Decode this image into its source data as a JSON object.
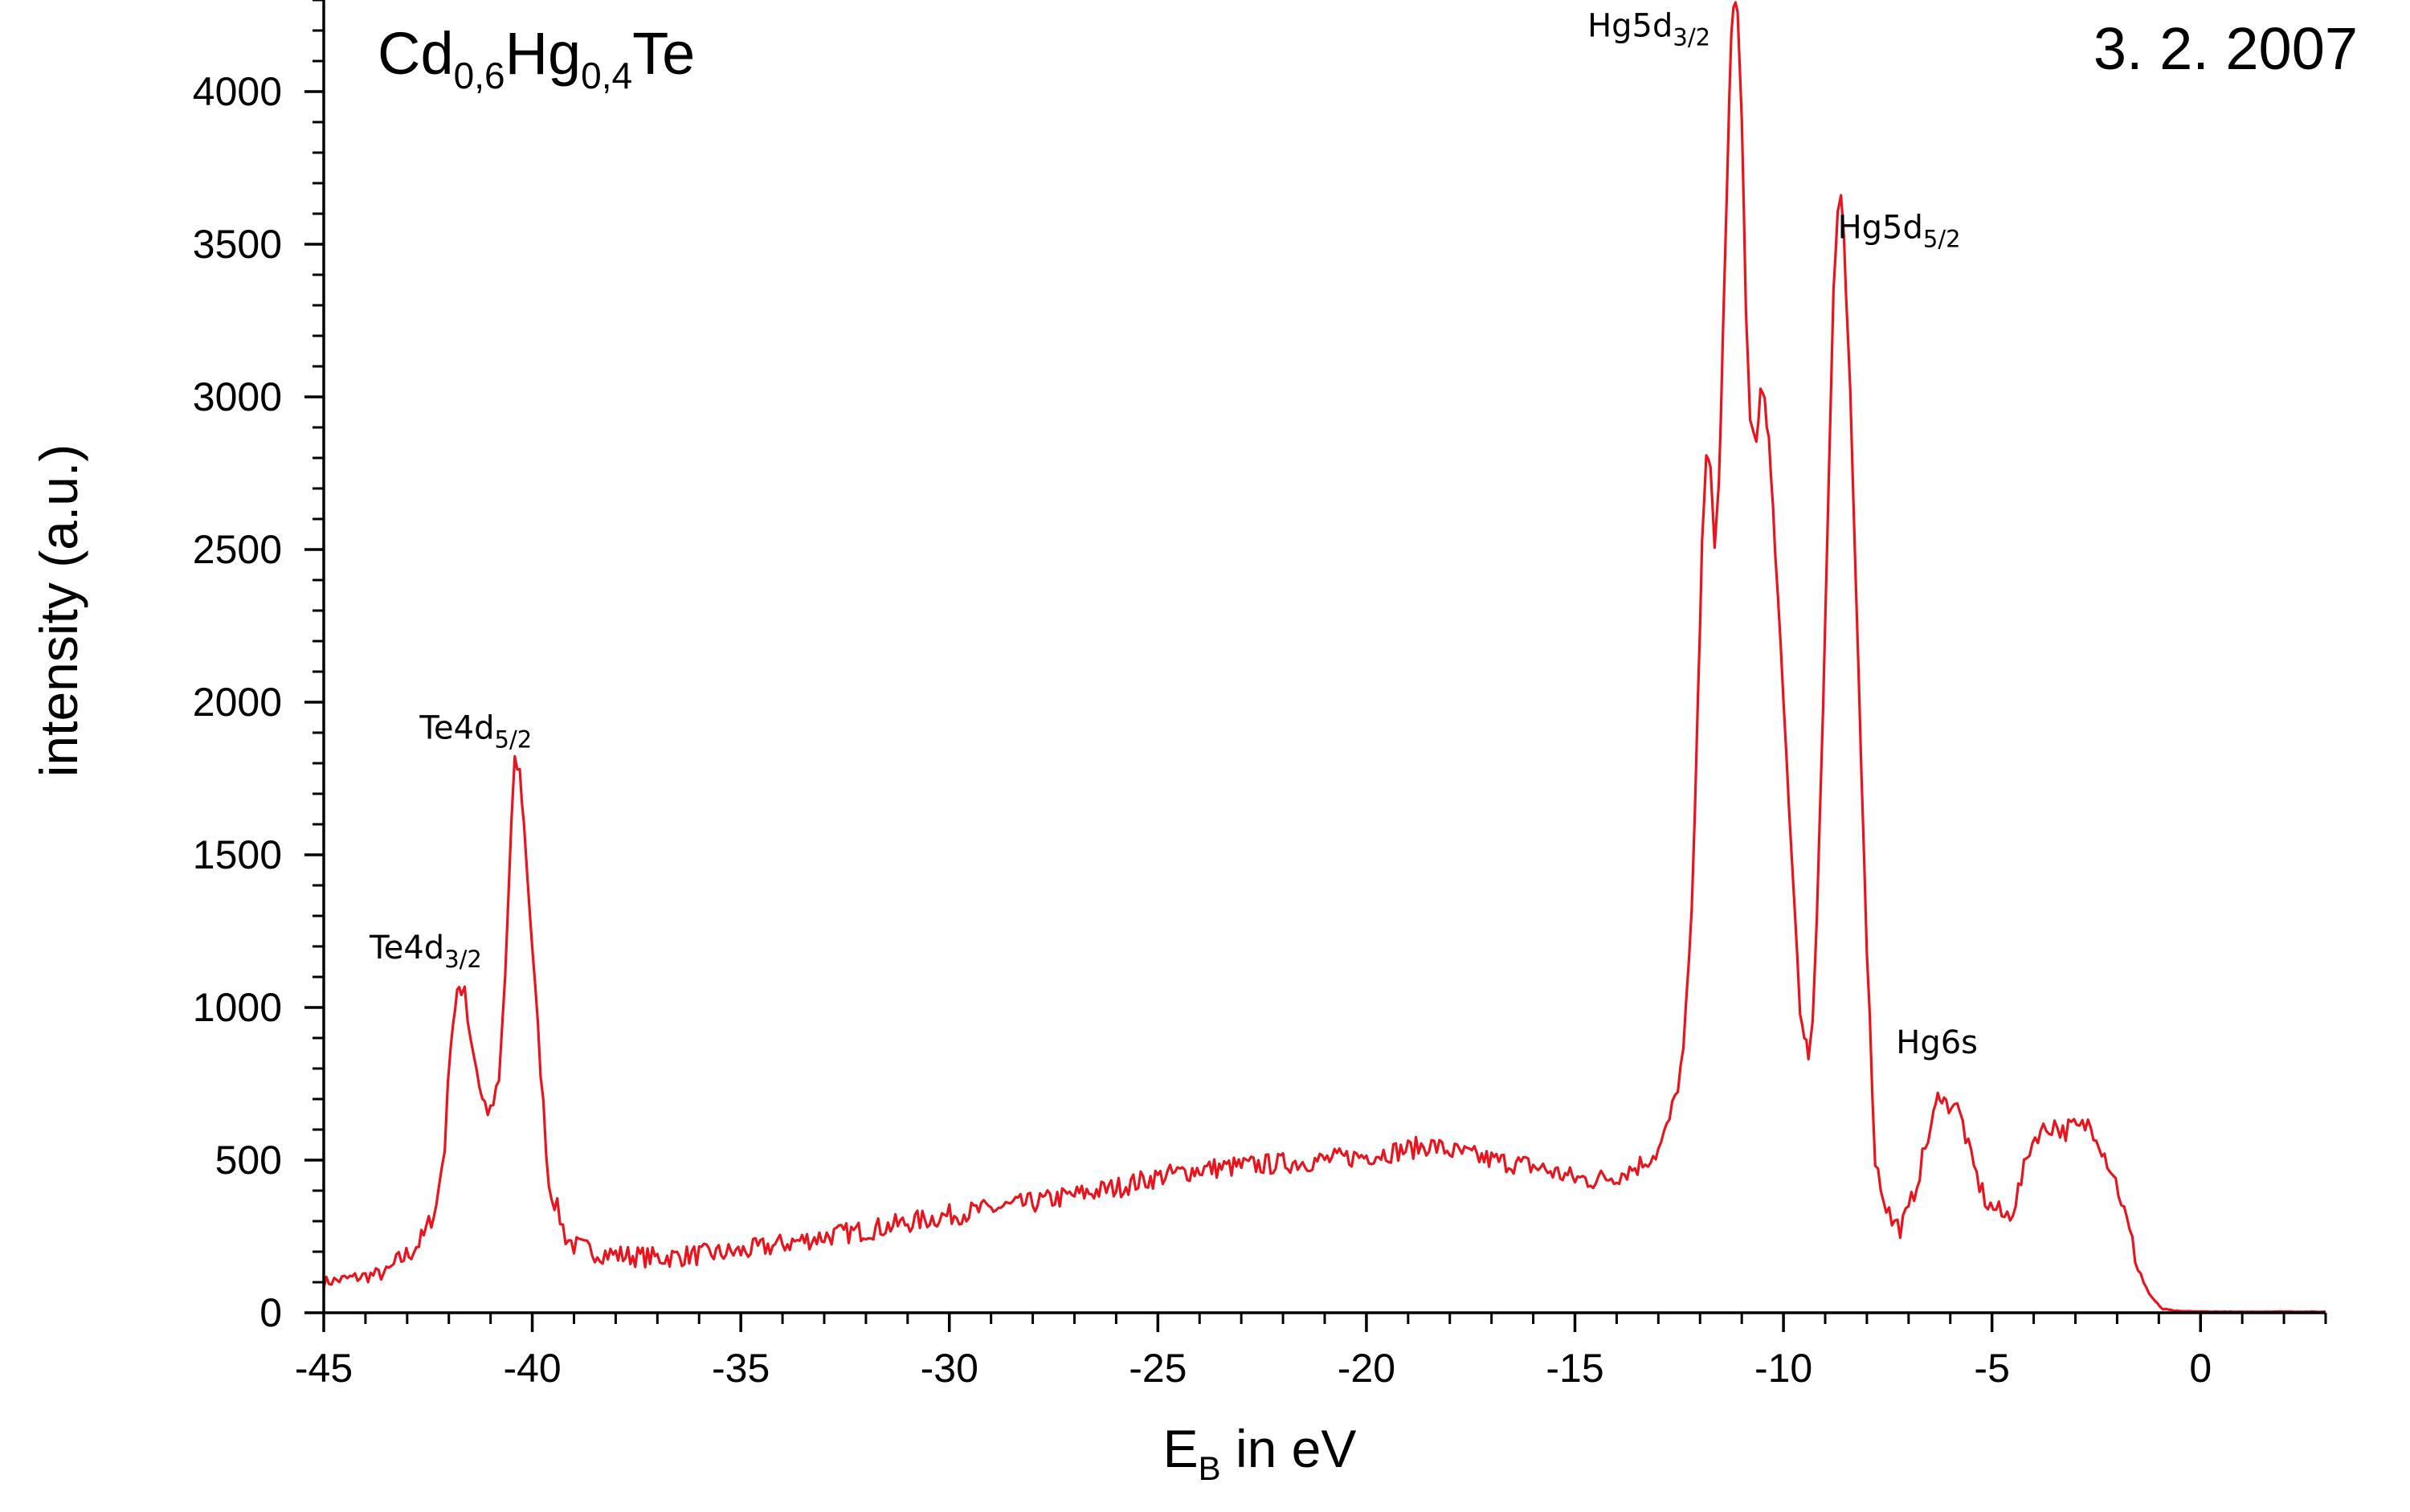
{
  "chart_data": {
    "type": "line",
    "title": "",
    "sample_label": {
      "main1": "Cd",
      "sub1": "0,6",
      "main2": "Hg",
      "sub2": "0,4",
      "main3": "Te"
    },
    "date_label": "3. 2. 2007",
    "xlabel": {
      "main": "E",
      "sub": "B",
      "rest": " in eV"
    },
    "ylabel": "intensity (a.u.)",
    "xlim": [
      -45,
      3
    ],
    "ylim": [
      0,
      4300
    ],
    "x_ticks": [
      -45,
      -40,
      -35,
      -30,
      -25,
      -20,
      -15,
      -10,
      -5,
      0
    ],
    "x_tick_labels": [
      "-45",
      "-40",
      "-35",
      "-30",
      "-25",
      "-20",
      "-15",
      "-10",
      "-5",
      "0"
    ],
    "x_minor_step": 1,
    "y_ticks": [
      0,
      500,
      1000,
      1500,
      2000,
      2500,
      3000,
      3500,
      4000
    ],
    "y_tick_labels": [
      "0",
      "500",
      "1000",
      "1500",
      "2000",
      "2500",
      "3000",
      "3500",
      "4000"
    ],
    "y_minor_step": 100,
    "grid": false,
    "legend": "none",
    "line_color": "#e8141e",
    "noise_amplitude": 16,
    "annotations": [
      {
        "id": "te4d32",
        "main": "Te4d",
        "sub": "3/2",
        "x": -43.9,
        "y": 1160
      },
      {
        "id": "te4d52",
        "main": "Te4d",
        "sub": "5/2",
        "x": -42.7,
        "y": 1880
      },
      {
        "id": "hg5d32",
        "main": "Hg5d",
        "sub": "3/2",
        "x": -14.7,
        "y": 4180
      },
      {
        "id": "hg5d52",
        "main": "Hg5d",
        "sub": "5/2",
        "x": -8.7,
        "y": 3520
      },
      {
        "id": "hg6s",
        "main": "Hg6s",
        "sub": "",
        "x": -7.3,
        "y": 850
      }
    ],
    "series": [
      {
        "points": [
          [
            -45.0,
            100
          ],
          [
            -44.5,
            110
          ],
          [
            -44.0,
            120
          ],
          [
            -43.5,
            130
          ],
          [
            -43.2,
            170
          ],
          [
            -42.9,
            200
          ],
          [
            -42.6,
            250
          ],
          [
            -42.3,
            350
          ],
          [
            -42.1,
            550
          ],
          [
            -41.95,
            900
          ],
          [
            -41.8,
            1050
          ],
          [
            -41.7,
            1040
          ],
          [
            -41.62,
            1085
          ],
          [
            -41.55,
            960
          ],
          [
            -41.4,
            850
          ],
          [
            -41.2,
            700
          ],
          [
            -41.0,
            650
          ],
          [
            -40.8,
            750
          ],
          [
            -40.65,
            1100
          ],
          [
            -40.5,
            1600
          ],
          [
            -40.42,
            1800
          ],
          [
            -40.3,
            1770
          ],
          [
            -40.2,
            1600
          ],
          [
            -40.0,
            1200
          ],
          [
            -39.8,
            800
          ],
          [
            -39.6,
            420
          ],
          [
            -39.4,
            340
          ],
          [
            -39.2,
            250
          ],
          [
            -39.0,
            220
          ],
          [
            -38.5,
            200
          ],
          [
            -38.0,
            190
          ],
          [
            -37.0,
            180
          ],
          [
            -36.0,
            190
          ],
          [
            -35.0,
            200
          ],
          [
            -34.0,
            225
          ],
          [
            -33.0,
            250
          ],
          [
            -32.0,
            270
          ],
          [
            -31.0,
            295
          ],
          [
            -30.0,
            320
          ],
          [
            -29.0,
            340
          ],
          [
            -28.0,
            360
          ],
          [
            -27.0,
            385
          ],
          [
            -26.0,
            410
          ],
          [
            -25.0,
            445
          ],
          [
            -24.0,
            470
          ],
          [
            -23.0,
            480
          ],
          [
            -22.0,
            490
          ],
          [
            -21.0,
            500
          ],
          [
            -20.0,
            515
          ],
          [
            -19.0,
            535
          ],
          [
            -18.5,
            550
          ],
          [
            -18.0,
            530
          ],
          [
            -17.0,
            500
          ],
          [
            -16.0,
            480
          ],
          [
            -15.0,
            440
          ],
          [
            -14.5,
            435
          ],
          [
            -14.0,
            450
          ],
          [
            -13.5,
            480
          ],
          [
            -13.0,
            530
          ],
          [
            -12.8,
            600
          ],
          [
            -12.6,
            700
          ],
          [
            -12.4,
            850
          ],
          [
            -12.2,
            1300
          ],
          [
            -12.05,
            2000
          ],
          [
            -11.95,
            2550
          ],
          [
            -11.85,
            2790
          ],
          [
            -11.75,
            2760
          ],
          [
            -11.65,
            2520
          ],
          [
            -11.55,
            2700
          ],
          [
            -11.45,
            3200
          ],
          [
            -11.35,
            3700
          ],
          [
            -11.25,
            4200
          ],
          [
            -11.2,
            4300
          ],
          [
            -11.1,
            4260
          ],
          [
            -11.0,
            3900
          ],
          [
            -10.9,
            3300
          ],
          [
            -10.8,
            2900
          ],
          [
            -10.65,
            2850
          ],
          [
            -10.55,
            3020
          ],
          [
            -10.45,
            3000
          ],
          [
            -10.35,
            2850
          ],
          [
            -10.2,
            2500
          ],
          [
            -10.0,
            2000
          ],
          [
            -9.8,
            1500
          ],
          [
            -9.6,
            1000
          ],
          [
            -9.5,
            880
          ],
          [
            -9.4,
            860
          ],
          [
            -9.3,
            950
          ],
          [
            -9.2,
            1300
          ],
          [
            -9.05,
            2000
          ],
          [
            -8.9,
            2800
          ],
          [
            -8.8,
            3350
          ],
          [
            -8.7,
            3600
          ],
          [
            -8.62,
            3640
          ],
          [
            -8.55,
            3500
          ],
          [
            -8.4,
            3000
          ],
          [
            -8.2,
            2100
          ],
          [
            -8.0,
            1200
          ],
          [
            -7.8,
            500
          ],
          [
            -7.6,
            380
          ],
          [
            -7.4,
            300
          ],
          [
            -7.2,
            280
          ],
          [
            -7.0,
            330
          ],
          [
            -6.8,
            430
          ],
          [
            -6.6,
            540
          ],
          [
            -6.4,
            640
          ],
          [
            -6.25,
            730
          ],
          [
            -6.1,
            680
          ],
          [
            -5.9,
            690
          ],
          [
            -5.7,
            620
          ],
          [
            -5.5,
            500
          ],
          [
            -5.3,
            420
          ],
          [
            -5.1,
            350
          ],
          [
            -4.9,
            340
          ],
          [
            -4.7,
            310
          ],
          [
            -4.5,
            340
          ],
          [
            -4.3,
            430
          ],
          [
            -4.1,
            540
          ],
          [
            -3.9,
            590
          ],
          [
            -3.7,
            600
          ],
          [
            -3.5,
            620
          ],
          [
            -3.3,
            590
          ],
          [
            -3.1,
            610
          ],
          [
            -2.9,
            600
          ],
          [
            -2.7,
            620
          ],
          [
            -2.5,
            590
          ],
          [
            -2.3,
            520
          ],
          [
            -2.1,
            460
          ],
          [
            -1.9,
            370
          ],
          [
            -1.7,
            260
          ],
          [
            -1.5,
            150
          ],
          [
            -1.3,
            80
          ],
          [
            -1.1,
            35
          ],
          [
            -0.9,
            12
          ],
          [
            -0.7,
            8
          ],
          [
            -0.5,
            5
          ],
          [
            0.0,
            4
          ],
          [
            1.0,
            3
          ],
          [
            2.0,
            4
          ],
          [
            3.0,
            3
          ]
        ]
      }
    ]
  }
}
